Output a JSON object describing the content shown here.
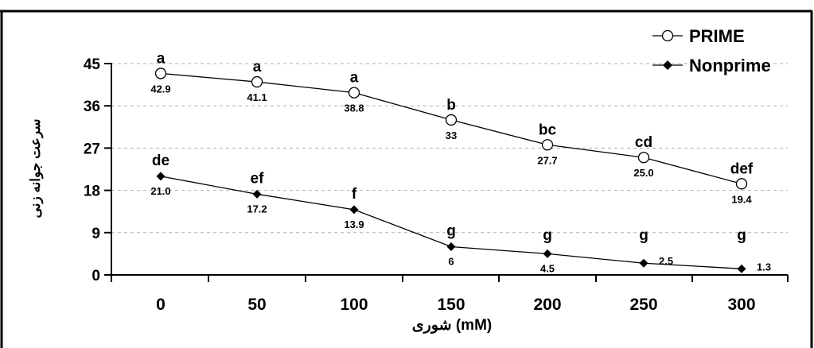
{
  "chart_data": {
    "type": "line",
    "xlabel": "شوری (mM)",
    "ylabel": "سرعت جوانه زنی",
    "categories": [
      "0",
      "50",
      "100",
      "150",
      "200",
      "250",
      "300"
    ],
    "yticks": [
      "0",
      "9",
      "18",
      "27",
      "36",
      "45"
    ],
    "ylim": [
      0,
      45
    ],
    "grid": "horizontal dashed",
    "legend_position": "top-right",
    "series": [
      {
        "name": "PRIME",
        "marker": "open-circle",
        "values": [
          42.9,
          41.1,
          38.8,
          33,
          27.7,
          25.0,
          19.4
        ],
        "value_labels": [
          "42.9",
          "41.1",
          "38.8",
          "33",
          "27.7",
          "25.0",
          "19.4"
        ],
        "letters": [
          "a",
          "a",
          "a",
          "b",
          "bc",
          "cd",
          "def"
        ]
      },
      {
        "name": "Nonprime",
        "marker": "filled-diamond",
        "values": [
          21.0,
          17.2,
          13.9,
          6,
          4.5,
          2.5,
          1.3
        ],
        "value_labels": [
          "21.0",
          "17.2",
          "13.9",
          "6",
          "4.5",
          "2.5",
          "1.3"
        ],
        "letters": [
          "de",
          "ef",
          "f",
          "g",
          "g",
          "g",
          "g"
        ]
      }
    ]
  },
  "colors": {
    "line": "#000000",
    "grid": "#b0b0b0",
    "background": "#ffffff"
  }
}
